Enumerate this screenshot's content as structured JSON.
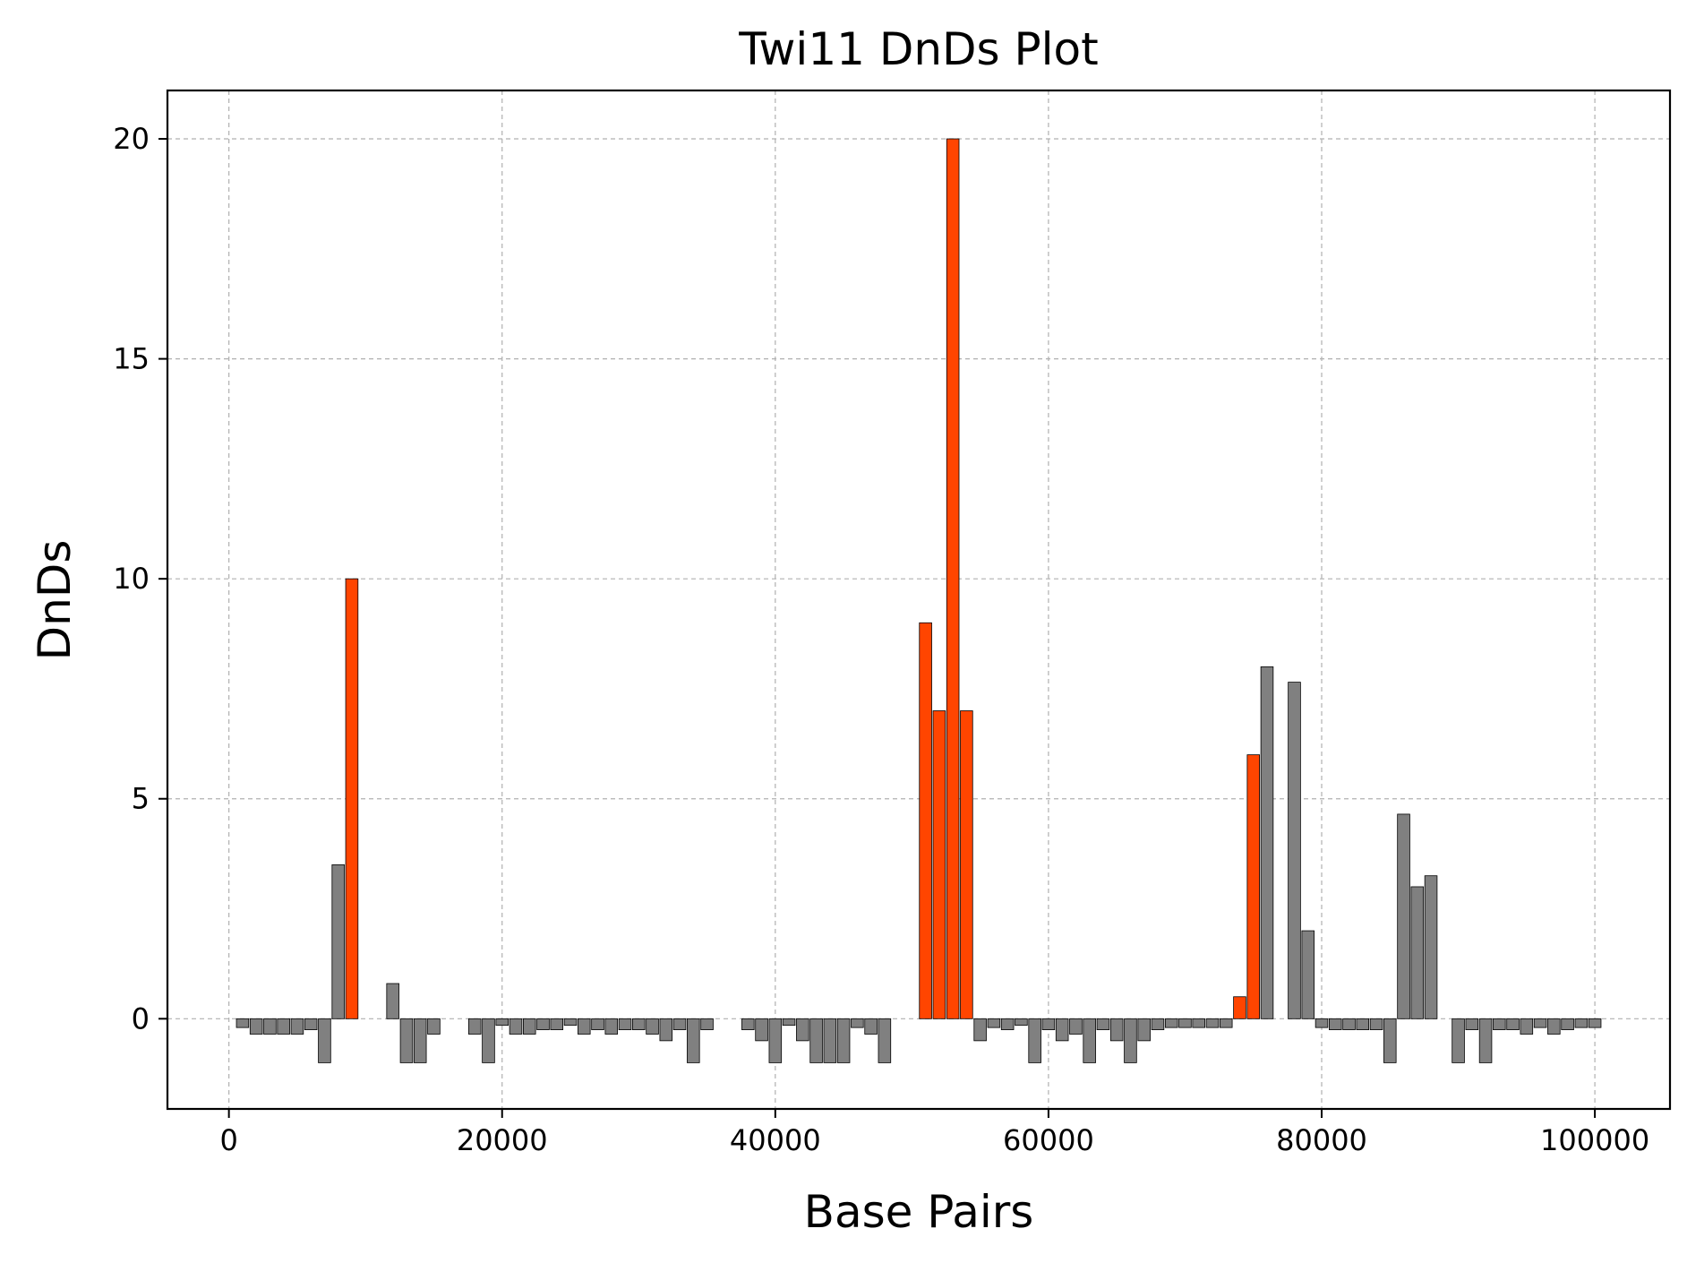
{
  "chart_data": {
    "type": "bar",
    "title": "Twi11 DnDs Plot",
    "xlabel": "Base Pairs",
    "ylabel": "DnDs",
    "xlim": [
      -4500,
      105500
    ],
    "ylim": [
      -2.05,
      21.1
    ],
    "xticks": [
      0,
      20000,
      40000,
      60000,
      80000,
      100000
    ],
    "yticks": [
      0,
      5,
      10,
      15,
      20
    ],
    "grid": true,
    "legend": "none",
    "bar_width": 900,
    "colors": {
      "normal": "#808080",
      "highlight": "#ff4500"
    },
    "x": [
      1000,
      2000,
      3000,
      4000,
      5000,
      6000,
      7000,
      8000,
      9000,
      10000,
      11000,
      12000,
      13000,
      14000,
      15000,
      16000,
      17000,
      18000,
      19000,
      20000,
      21000,
      22000,
      23000,
      24000,
      25000,
      26000,
      27000,
      28000,
      29000,
      30000,
      31000,
      32000,
      33000,
      34000,
      35000,
      36000,
      37000,
      38000,
      39000,
      40000,
      41000,
      42000,
      43000,
      44000,
      45000,
      46000,
      47000,
      48000,
      49000,
      50000,
      51000,
      52000,
      53000,
      54000,
      55000,
      56000,
      57000,
      58000,
      59000,
      60000,
      61000,
      62000,
      63000,
      64000,
      65000,
      66000,
      67000,
      68000,
      69000,
      70000,
      71000,
      72000,
      73000,
      74000,
      75000,
      76000,
      77000,
      78000,
      79000,
      80000,
      81000,
      82000,
      83000,
      84000,
      85000,
      86000,
      87000,
      88000,
      89000,
      90000,
      91000,
      92000,
      93000,
      94000,
      95000,
      96000,
      97000,
      98000,
      99000,
      100000
    ],
    "values": [
      -0.2,
      -0.35,
      -0.35,
      -0.35,
      -0.35,
      -0.25,
      -1,
      3.5,
      10,
      0,
      0,
      0.8,
      -1,
      -1,
      -0.35,
      0,
      0,
      -0.35,
      -1,
      -0.15,
      -0.35,
      -0.35,
      -0.25,
      -0.25,
      -0.15,
      -0.35,
      -0.25,
      -0.35,
      -0.25,
      -0.25,
      -0.35,
      -0.5,
      -0.25,
      -1,
      -0.25,
      0,
      0,
      -0.25,
      -0.5,
      -1,
      -0.15,
      -0.5,
      -1,
      -1,
      -1,
      -0.2,
      -0.35,
      -1,
      0,
      0,
      9,
      7,
      20,
      7,
      -0.5,
      -0.2,
      -0.25,
      -0.15,
      -1,
      -0.25,
      -0.5,
      -0.35,
      -1,
      -0.25,
      -0.5,
      -1,
      -0.5,
      -0.25,
      -0.2,
      -0.2,
      -0.2,
      -0.2,
      -0.2,
      0.5,
      6,
      8,
      0,
      7.65,
      2,
      -0.2,
      -0.25,
      -0.25,
      -0.25,
      -0.25,
      -1,
      4.65,
      3,
      3.25,
      0,
      -1,
      -0.25,
      -1,
      -0.25,
      -0.25,
      -0.35,
      -0.2,
      -0.35,
      -0.25,
      -0.2,
      -0.2
    ],
    "highlighted": [
      9000,
      51000,
      52000,
      53000,
      54000,
      74000,
      75000,
      77000
    ]
  }
}
